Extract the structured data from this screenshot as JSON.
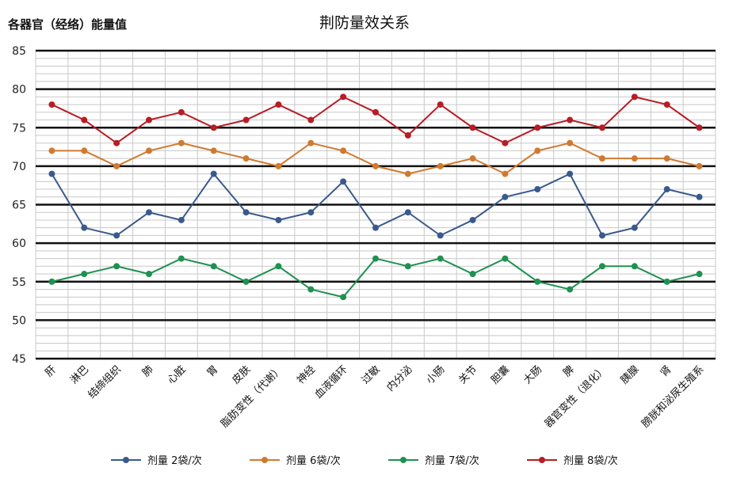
{
  "chart_data": {
    "type": "line",
    "title": "荆防量效关系",
    "ylabel": "各器官（经络）能量值",
    "xlabel": "",
    "ylim": [
      45,
      85
    ],
    "yticks": [
      45,
      50,
      55,
      60,
      65,
      70,
      75,
      80,
      85
    ],
    "grid": true,
    "legend_position": "bottom",
    "categories": [
      "肝",
      "淋巴",
      "结缔组织",
      "肺",
      "心脏",
      "胃",
      "皮肤",
      "脂肪变性（代谢）",
      "神经",
      "血液循环",
      "过敏",
      "内分泌",
      "小肠",
      "关节",
      "胆囊",
      "大肠",
      "脾",
      "器官变性（退化）",
      "胰腺",
      "肾",
      "膀胱和泌尿生殖系"
    ],
    "series": [
      {
        "name": "剂量 2袋/次",
        "color": "#3a5a8c",
        "values": [
          69,
          62,
          61,
          64,
          63,
          69,
          64,
          63,
          64,
          68,
          62,
          64,
          61,
          63,
          66,
          67,
          69,
          61,
          62,
          67,
          66
        ]
      },
      {
        "name": "剂量 6袋/次",
        "color": "#d07a30",
        "values": [
          72,
          72,
          70,
          72,
          73,
          72,
          71,
          70,
          73,
          72,
          70,
          69,
          70,
          71,
          69,
          72,
          73,
          71,
          71,
          71,
          70
        ]
      },
      {
        "name": "剂量 7袋/次",
        "color": "#1f9150",
        "values": [
          55,
          56,
          57,
          56,
          58,
          57,
          55,
          57,
          54,
          53,
          58,
          57,
          58,
          56,
          58,
          55,
          54,
          57,
          57,
          55,
          56
        ]
      },
      {
        "name": "剂量 8袋/次",
        "color": "#b81c24",
        "values": [
          78,
          76,
          73,
          76,
          77,
          75,
          76,
          78,
          76,
          79,
          77,
          74,
          78,
          75,
          73,
          75,
          76,
          75,
          79,
          78,
          75
        ]
      }
    ]
  }
}
